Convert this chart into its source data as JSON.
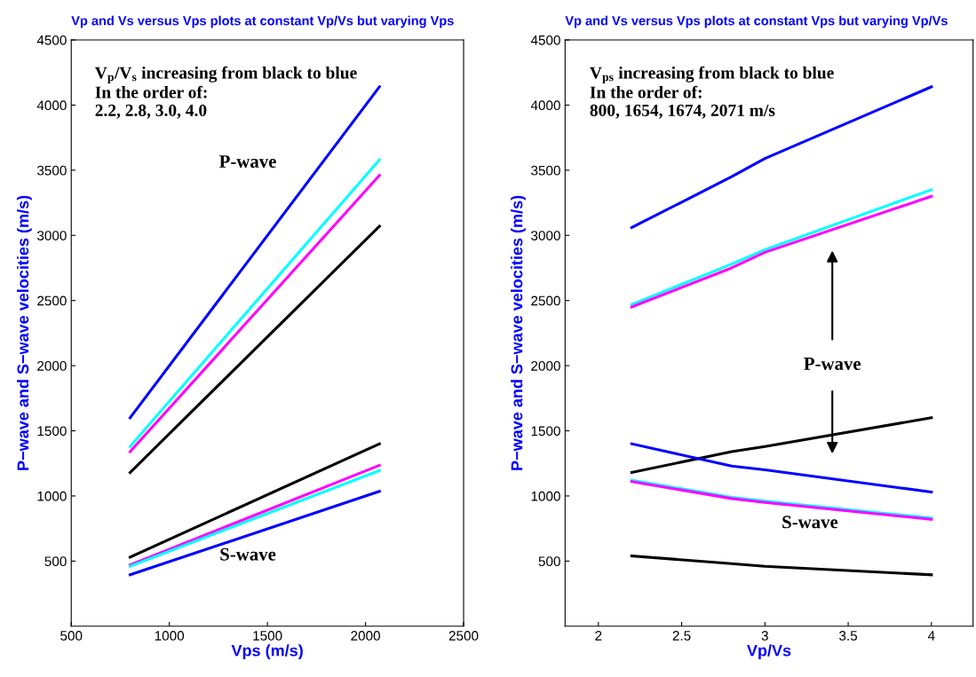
{
  "chart_data": [
    {
      "type": "line",
      "title": "Vp and Vs versus Vps plots at constant Vp/Vs but varying Vps",
      "xlabel": "Vps (m/s)",
      "ylabel": "P−wave and S−wave velocities (m/s)",
      "x": [
        800,
        2071
      ],
      "xlim": [
        500,
        2500
      ],
      "xticks": [
        500,
        1000,
        1500,
        2000,
        2500
      ],
      "ylim": [
        0,
        4500
      ],
      "yticks": [
        500,
        1000,
        1500,
        2000,
        2500,
        3000,
        3500,
        4000,
        4500
      ],
      "grid": false,
      "legend": false,
      "series": [
        {
          "color": "#0000ff",
          "values": [
            1600,
            4140
          ]
        },
        {
          "color": "#00ffff",
          "values": [
            1380,
            3580
          ]
        },
        {
          "color": "#ff00ff",
          "values": [
            1340,
            3460
          ]
        },
        {
          "color": "#000000",
          "values": [
            1180,
            3070
          ]
        },
        {
          "color": "#000000",
          "values": [
            530,
            1400
          ]
        },
        {
          "color": "#ff00ff",
          "values": [
            470,
            1235
          ]
        },
        {
          "color": "#00ffff",
          "values": [
            460,
            1195
          ]
        },
        {
          "color": "#0000ff",
          "values": [
            395,
            1035
          ]
        }
      ],
      "annotations": [
        "V$_{p}$/V$_{s}$ increasing from black to blue\nIn the order of:\n2.2, 2.8, 3.0, 4.0",
        "P-wave",
        "S-wave"
      ]
    },
    {
      "type": "line",
      "title": "Vp and Vs versus Vps plots at constant Vps but varying Vp/Vs",
      "xlabel": "Vp/Vs",
      "ylabel": "P−wave and S−wave velocities (m/s)",
      "x": [
        2.2,
        2.8,
        3.0,
        4.0
      ],
      "xlim": [
        1.8,
        4.25
      ],
      "xticks": [
        2,
        2.5,
        3,
        3.5,
        4
      ],
      "ylim": [
        0,
        4500
      ],
      "yticks": [
        500,
        1000,
        1500,
        2000,
        2500,
        3000,
        3500,
        4000,
        4500
      ],
      "grid": false,
      "legend": false,
      "series": [
        {
          "color": "#0000ff",
          "values": [
            3060,
            3450,
            3590,
            4140
          ]
        },
        {
          "color": "#00ffff",
          "values": [
            2470,
            2780,
            2890,
            3350
          ]
        },
        {
          "color": "#ff00ff",
          "values": [
            2450,
            2750,
            2870,
            3300
          ]
        },
        {
          "color": "#000000",
          "values": [
            1180,
            1340,
            1380,
            1600
          ]
        },
        {
          "color": "#0000ff",
          "values": [
            1400,
            1230,
            1200,
            1030
          ]
        },
        {
          "color": "#00ffff",
          "values": [
            1120,
            990,
            960,
            830
          ]
        },
        {
          "color": "#ff00ff",
          "values": [
            1110,
            980,
            950,
            820
          ]
        },
        {
          "color": "#000000",
          "values": [
            540,
            480,
            460,
            395
          ]
        }
      ],
      "annotations": [
        "V$_{ps}$ increasing from black to blue\nIn the order of:\n800, 1654, 1674, 2071 m/s",
        "P-wave",
        "S-wave"
      ]
    }
  ]
}
